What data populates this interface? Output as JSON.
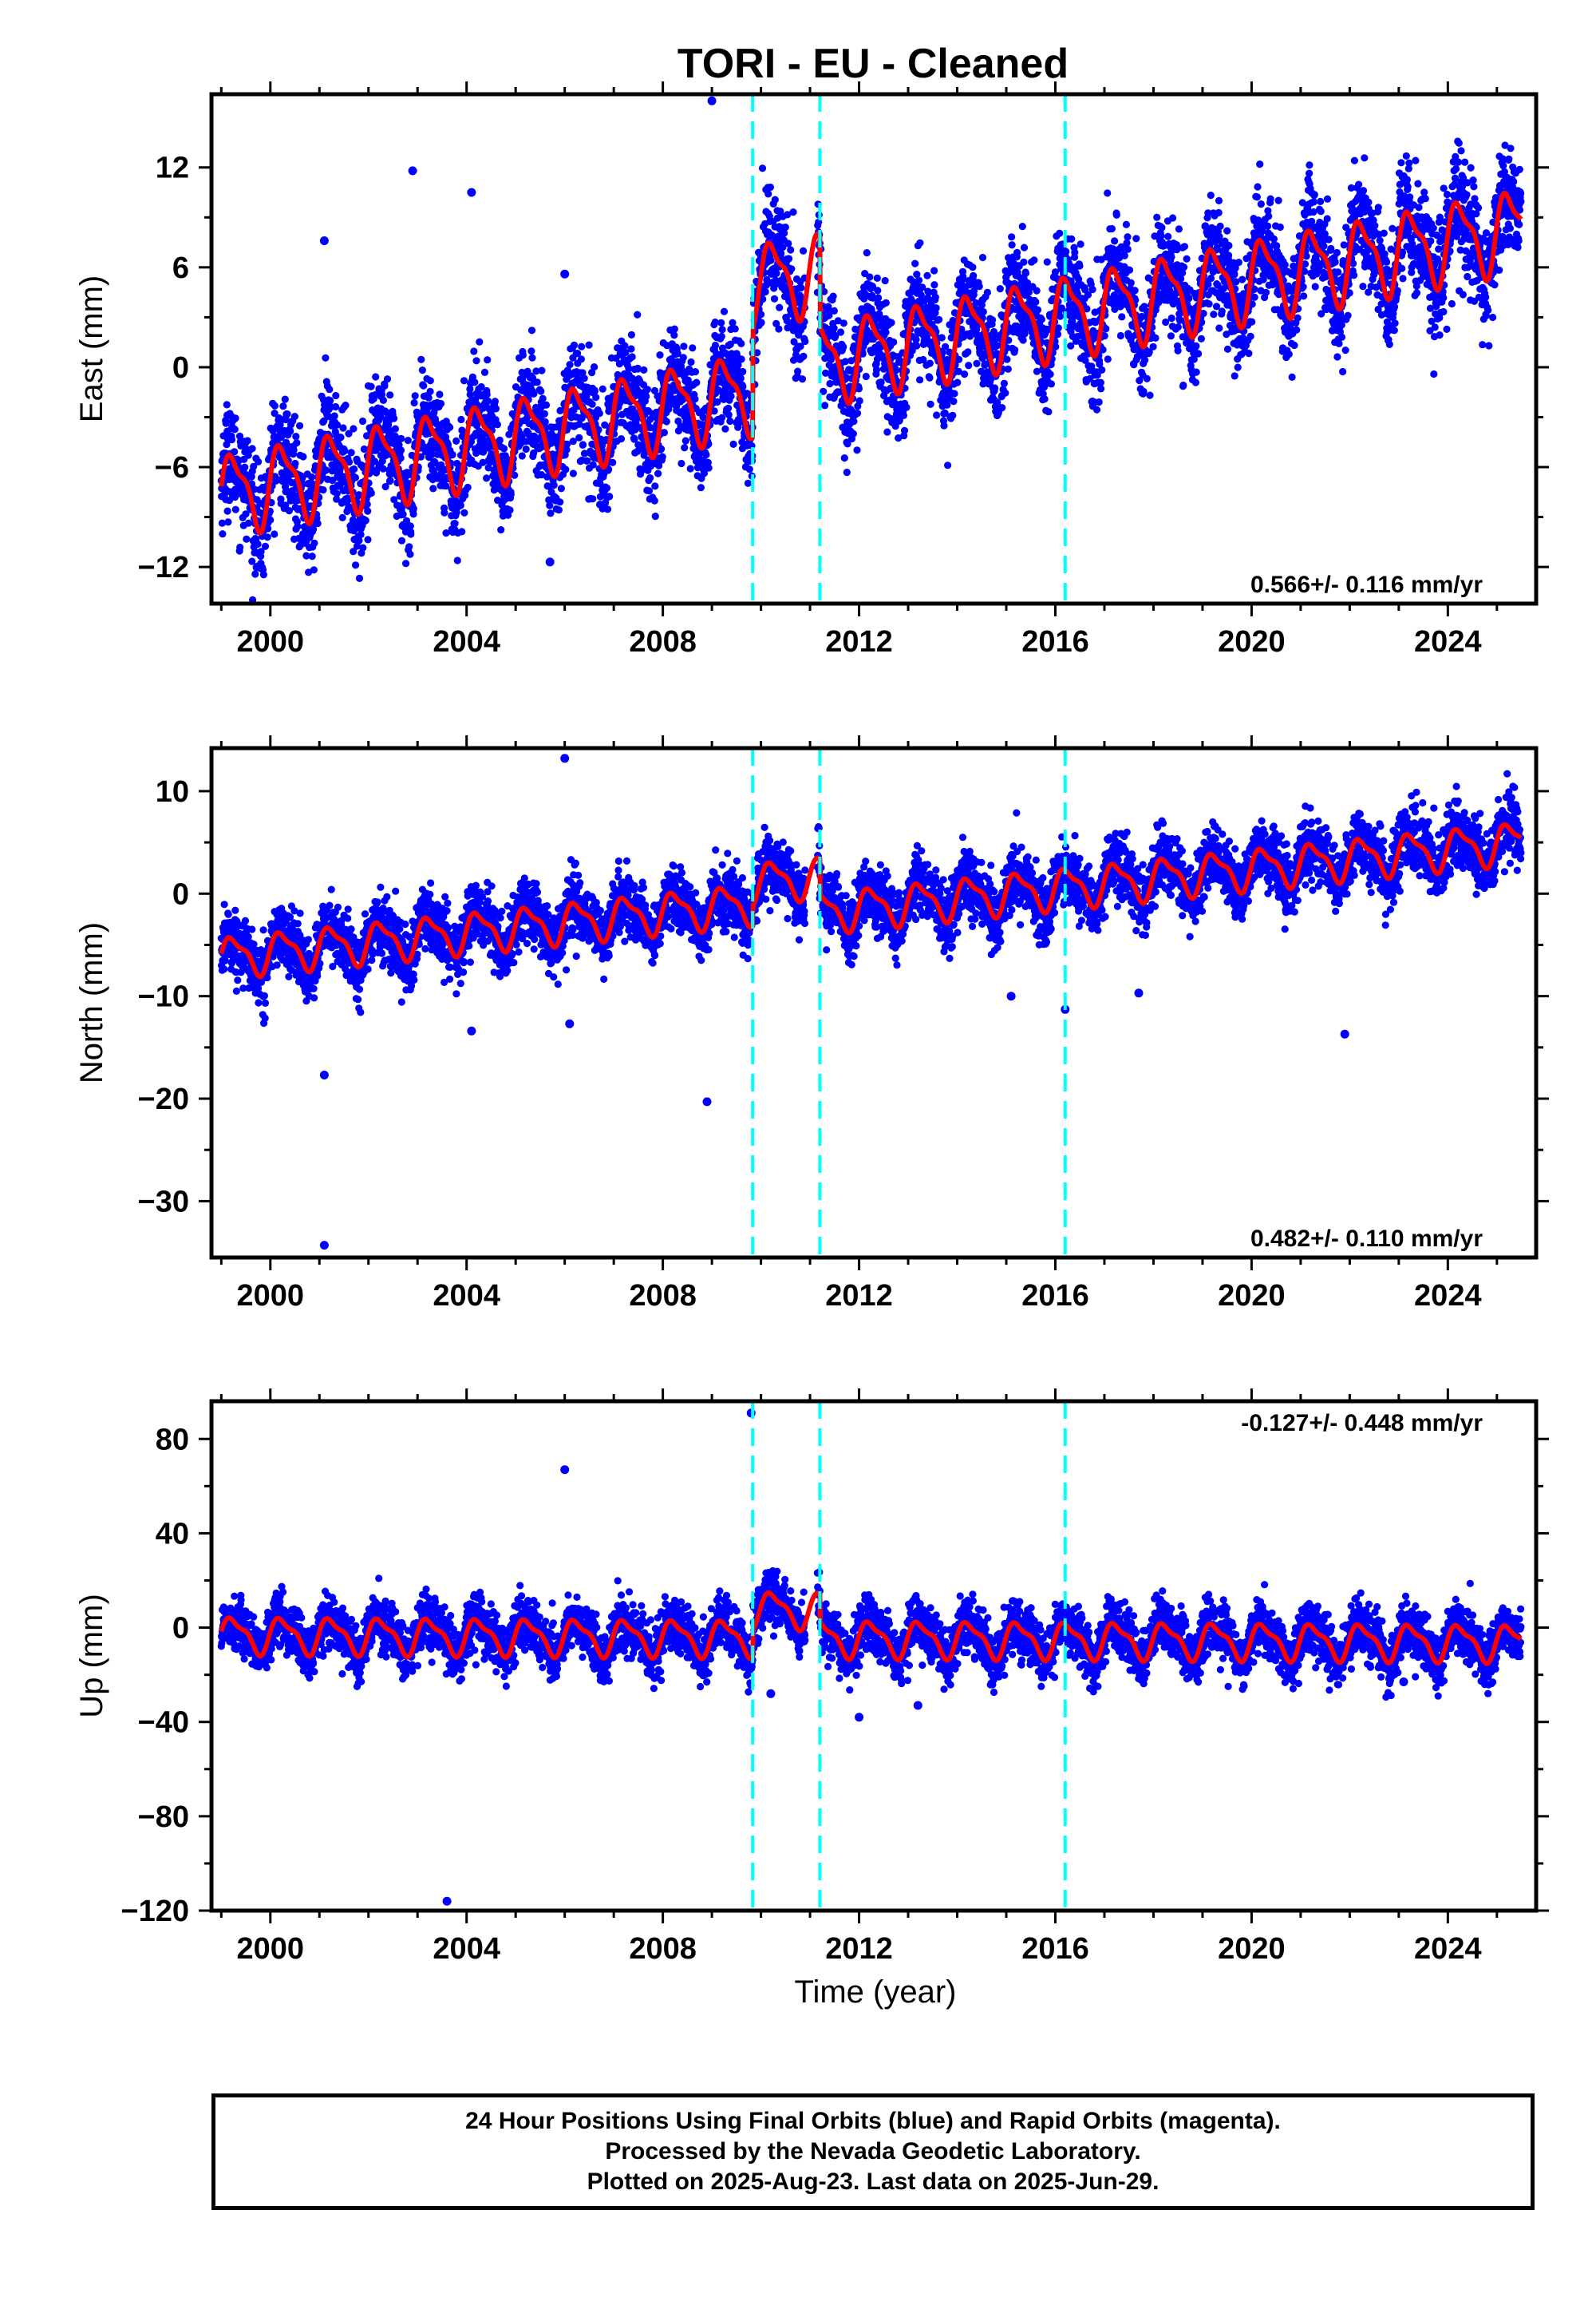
{
  "title": "TORI  - EU - Cleaned",
  "footer": {
    "line1": "24 Hour Positions Using Final Orbits (blue) and Rapid Orbits (magenta).",
    "line2": "Processed by the Nevada Geodetic Laboratory.",
    "line3": "Plotted on 2025-Aug-23. Last data on 2025-Jun-29."
  },
  "colors": {
    "data_points": "#0000ff",
    "model_fit": "#ff0000",
    "event_lines": "#00ffff"
  },
  "chart_data": [
    {
      "type": "scatter",
      "component": "east",
      "ylabel": "East (mm)",
      "xlabel": "",
      "xlim": [
        1998.8,
        2025.8
      ],
      "ylim": [
        -14.2,
        16.4
      ],
      "xticks": [
        2000,
        2004,
        2008,
        2012,
        2016,
        2020,
        2024
      ],
      "yticks": [
        -12,
        -6,
        0,
        6,
        12
      ],
      "rate": "0.566+/- 0.116 mm/yr",
      "velocity": 0.566,
      "offsets": [
        {
          "x": 2009.83,
          "dy": 6.5
        },
        {
          "x": 2011.2,
          "dy": -5.5
        }
      ],
      "start_value": -7.6,
      "annual_amplitude": 2.2,
      "scatter_sigma": 1.6,
      "outliers": [
        [
          2009.0,
          16.0
        ],
        [
          2002.9,
          11.8
        ],
        [
          2004.1,
          10.5
        ],
        [
          2001.1,
          7.6
        ],
        [
          2006.0,
          5.6
        ],
        [
          2005.7,
          -11.7
        ]
      ],
      "event_lines": [
        2009.83,
        2011.2,
        2016.2
      ],
      "grid": false,
      "legend": "none"
    },
    {
      "type": "scatter",
      "component": "north",
      "ylabel": "North (mm)",
      "xlabel": "",
      "xlim": [
        1998.8,
        2025.8
      ],
      "ylim": [
        -35.5,
        14.2
      ],
      "xticks": [
        2000,
        2004,
        2008,
        2012,
        2016,
        2020,
        2024
      ],
      "yticks": [
        -30,
        -20,
        -10,
        0,
        10
      ],
      "rate": "0.482+/- 0.110 mm/yr",
      "velocity": 0.482,
      "offsets": [
        {
          "x": 2009.83,
          "dy": 2.0
        },
        {
          "x": 2011.2,
          "dy": -3.5
        }
      ],
      "start_value": -6.2,
      "annual_amplitude": 1.8,
      "scatter_sigma": 1.5,
      "outliers": [
        [
          2006.0,
          13.2
        ],
        [
          2008.9,
          -20.3
        ],
        [
          2001.1,
          -34.3
        ],
        [
          2001.1,
          -17.7
        ],
        [
          2006.1,
          -12.7
        ],
        [
          2004.1,
          -13.4
        ],
        [
          2017.7,
          -9.7
        ],
        [
          2021.9,
          -13.7
        ],
        [
          2016.2,
          -11.3
        ],
        [
          2015.1,
          -10.0
        ]
      ],
      "event_lines": [
        2009.83,
        2011.2,
        2016.2
      ],
      "grid": false,
      "legend": "none"
    },
    {
      "type": "scatter",
      "component": "up",
      "ylabel": "Up (mm)",
      "xlabel": "Time (year)",
      "xlim": [
        1998.8,
        2025.8
      ],
      "ylim": [
        -120,
        96
      ],
      "xticks": [
        2000,
        2004,
        2008,
        2012,
        2016,
        2020,
        2024
      ],
      "yticks": [
        -120,
        -80,
        -40,
        0,
        40,
        80
      ],
      "rate": "-0.127+/- 0.448 mm/yr",
      "velocity": -0.127,
      "offsets": [
        {
          "x": 2009.83,
          "dy": 12.0
        },
        {
          "x": 2011.2,
          "dy": -12.0
        }
      ],
      "start_value": -3.0,
      "annual_amplitude": 7.0,
      "scatter_sigma": 5.5,
      "outliers": [
        [
          2009.8,
          91.0
        ],
        [
          2006.0,
          67.0
        ],
        [
          2003.6,
          -116.0
        ],
        [
          2012.0,
          -38.0
        ],
        [
          2013.2,
          -33.0
        ],
        [
          2010.2,
          -28.0
        ],
        [
          2023.1,
          -23.0
        ]
      ],
      "event_lines": [
        2009.83,
        2011.2,
        2016.2
      ],
      "grid": false,
      "legend": "none"
    }
  ]
}
